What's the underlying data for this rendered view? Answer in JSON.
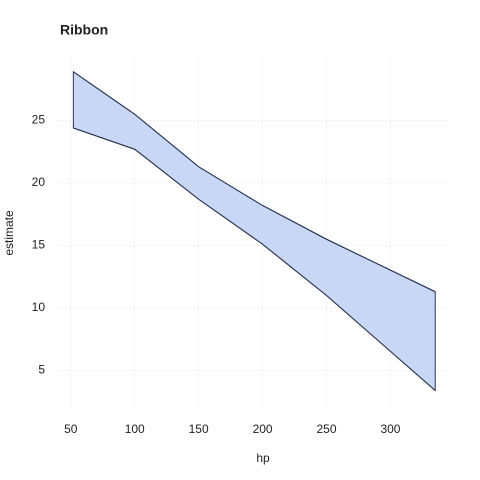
{
  "chart_data": {
    "type": "ribbon",
    "title": "Ribbon",
    "x_label": "hp",
    "y_label": "estimate",
    "x": [
      52,
      100,
      150,
      200,
      250,
      335
    ],
    "lower": [
      24.4,
      22.7,
      18.7,
      15.1,
      11.0,
      3.4
    ],
    "upper": [
      28.9,
      25.5,
      21.3,
      18.2,
      15.5,
      11.3
    ],
    "fill": "#c9d7f7",
    "stroke": "#2b3550",
    "xlim": [
      40,
      345
    ],
    "xticks": [
      50,
      100,
      150,
      200,
      250,
      300
    ],
    "ylim": [
      2,
      30
    ],
    "yticks": [
      5,
      10,
      15,
      20,
      25
    ],
    "grid": true
  }
}
